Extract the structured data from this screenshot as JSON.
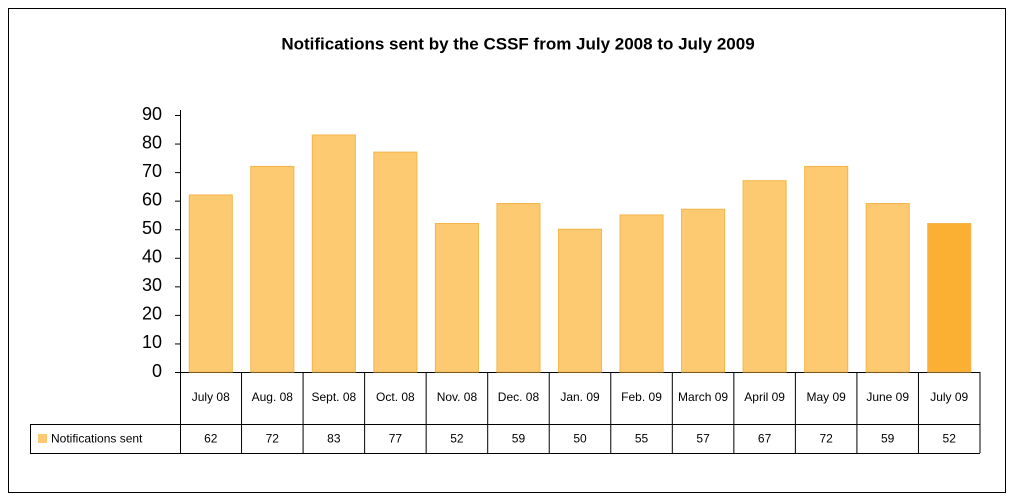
{
  "chart_data": {
    "type": "bar",
    "title": "Notifications sent by the CSSF from July 2008 to July 2009",
    "categories": [
      "July 08",
      "Aug. 08",
      "Sept. 08",
      "Oct. 08",
      "Nov. 08",
      "Dec. 08",
      "Jan. 09",
      "Feb. 09",
      "March 09",
      "April 09",
      "May 09",
      "June 09",
      "July 09"
    ],
    "series": [
      {
        "name": "Notifications sent",
        "color": "#fdca72",
        "colors": [
          "#fdca72",
          "#fdca72",
          "#fdca72",
          "#fdca72",
          "#fdca72",
          "#fdca72",
          "#fdca72",
          "#fdca72",
          "#fdca72",
          "#fdca72",
          "#fdca72",
          "#fdca72",
          "#fbb034"
        ],
        "values": [
          62,
          72,
          83,
          77,
          52,
          59,
          50,
          55,
          57,
          67,
          72,
          59,
          52
        ]
      }
    ],
    "ylim": [
      0,
      90
    ],
    "yticks": [
      0,
      10,
      20,
      30,
      40,
      50,
      60,
      70,
      80,
      90
    ],
    "grid": false
  }
}
